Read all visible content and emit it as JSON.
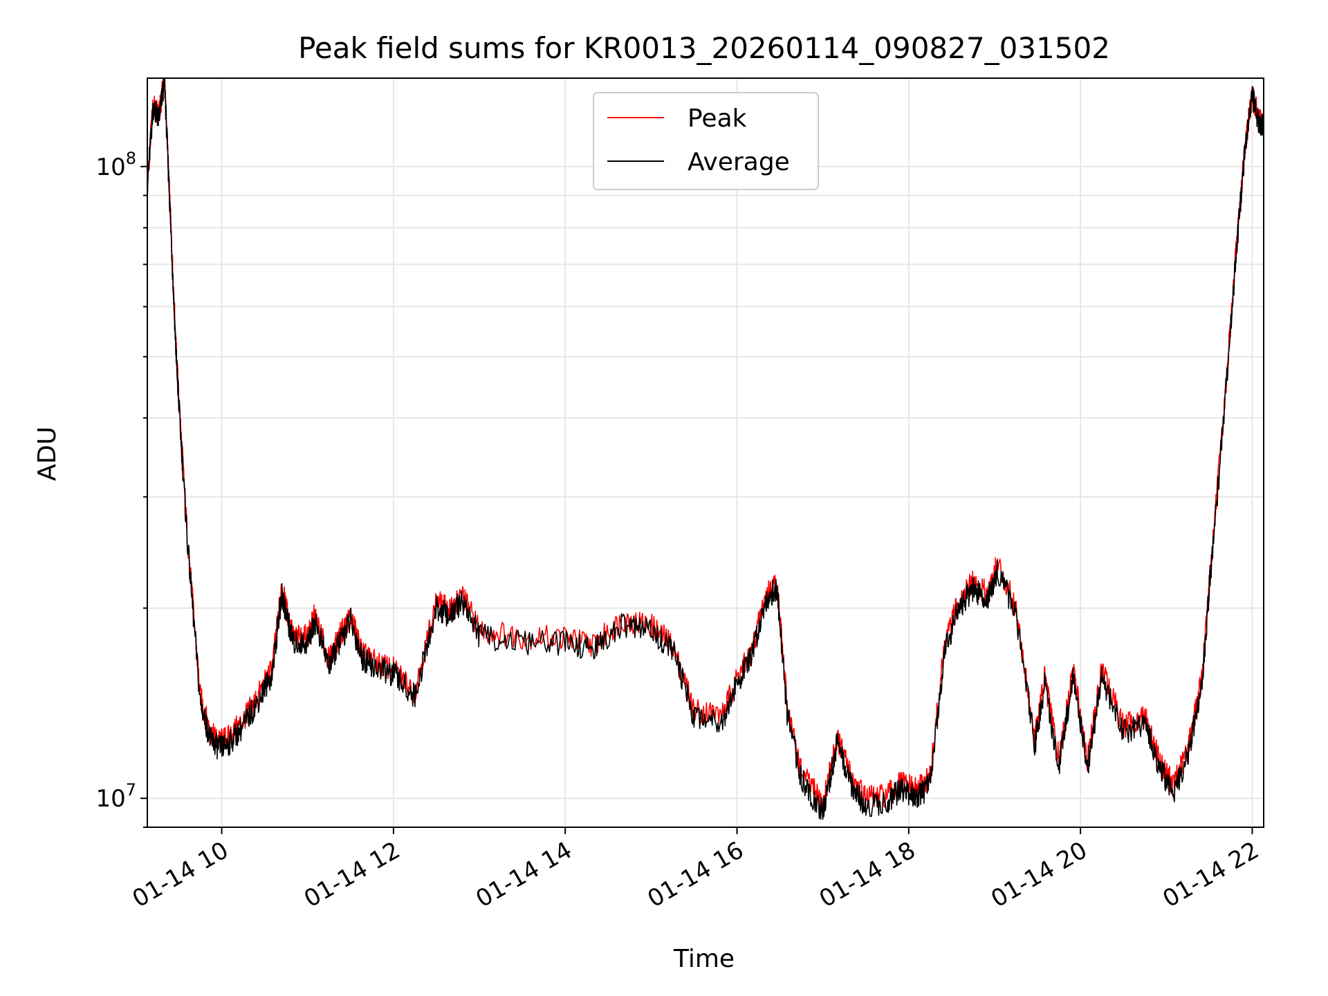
{
  "chart_data": {
    "type": "line",
    "title": "Peak field sums for KR0013_20260114_090827_031502",
    "xlabel": "Time",
    "ylabel": "ADU",
    "yscale": "log",
    "xlim": [
      "2026-01-14 09:08",
      "2026-01-14 22:08"
    ],
    "ylim": [
      9000000,
      138000000
    ],
    "x_ticks": [
      "01-14 10",
      "01-14 12",
      "01-14 14",
      "01-14 16",
      "01-14 18",
      "01-14 20",
      "01-14 22"
    ],
    "y_ticks": [
      {
        "base": "10",
        "exp": "7"
      },
      {
        "base": "10",
        "exp": "8"
      }
    ],
    "grid": true,
    "legend": {
      "placement": "top-center"
    },
    "series": [
      {
        "name": "Peak",
        "color": "#ff0000",
        "x": [
          "2026-01-14 09:08",
          "2026-01-14 09:12",
          "2026-01-14 09:16",
          "2026-01-14 09:20",
          "2026-01-14 09:24",
          "2026-01-14 09:28",
          "2026-01-14 09:30",
          "2026-01-14 09:36",
          "2026-01-14 09:45",
          "2026-01-14 09:52",
          "2026-01-14 09:58",
          "2026-01-14 10:05",
          "2026-01-14 10:15",
          "2026-01-14 10:25",
          "2026-01-14 10:35",
          "2026-01-14 10:42",
          "2026-01-14 10:45",
          "2026-01-14 10:50",
          "2026-01-14 11:00",
          "2026-01-14 11:05",
          "2026-01-14 11:15",
          "2026-01-14 11:22",
          "2026-01-14 11:30",
          "2026-01-14 11:38",
          "2026-01-14 11:45",
          "2026-01-14 12:00",
          "2026-01-14 12:15",
          "2026-01-14 12:30",
          "2026-01-14 12:40",
          "2026-01-14 12:48",
          "2026-01-14 13:00",
          "2026-01-14 13:30",
          "2026-01-14 14:00",
          "2026-01-14 14:20",
          "2026-01-14 14:40",
          "2026-01-14 15:00",
          "2026-01-14 15:15",
          "2026-01-14 15:30",
          "2026-01-14 15:50",
          "2026-01-14 16:00",
          "2026-01-14 16:10",
          "2026-01-14 16:20",
          "2026-01-14 16:28",
          "2026-01-14 16:35",
          "2026-01-14 16:45",
          "2026-01-14 17:00",
          "2026-01-14 17:10",
          "2026-01-14 17:20",
          "2026-01-14 17:30",
          "2026-01-14 17:45",
          "2026-01-14 17:55",
          "2026-01-14 18:05",
          "2026-01-14 18:15",
          "2026-01-14 18:25",
          "2026-01-14 18:35",
          "2026-01-14 18:45",
          "2026-01-14 18:55",
          "2026-01-14 19:02",
          "2026-01-14 19:15",
          "2026-01-14 19:28",
          "2026-01-14 19:35",
          "2026-01-14 19:45",
          "2026-01-14 19:55",
          "2026-01-14 20:05",
          "2026-01-14 20:15",
          "2026-01-14 20:30",
          "2026-01-14 20:45",
          "2026-01-14 20:55",
          "2026-01-14 21:05",
          "2026-01-14 21:15",
          "2026-01-14 21:25",
          "2026-01-14 21:30",
          "2026-01-14 21:40",
          "2026-01-14 21:48",
          "2026-01-14 21:55",
          "2026-01-14 22:00",
          "2026-01-14 22:05",
          "2026-01-14 22:08"
        ],
        "y": [
          94000000,
          125000000,
          120000000,
          138000000,
          85000000,
          52000000,
          43000000,
          26000000,
          14500000,
          12700000,
          12300000,
          12500000,
          13300000,
          14500000,
          16000000,
          21500000,
          20000000,
          18000000,
          18000000,
          19500000,
          16500000,
          18000000,
          19500000,
          17000000,
          16500000,
          16000000,
          14800000,
          20500000,
          19800000,
          21000000,
          18500000,
          18000000,
          18000000,
          17500000,
          19200000,
          18800000,
          17500000,
          13800000,
          13600000,
          15500000,
          17000000,
          21000000,
          22000000,
          14000000,
          11000000,
          9800000,
          12500000,
          10800000,
          10000000,
          10100000,
          10600000,
          10300000,
          10800000,
          17500000,
          20500000,
          22000000,
          21000000,
          23500000,
          20000000,
          12500000,
          15500000,
          11500000,
          16000000,
          11500000,
          16000000,
          13000000,
          13500000,
          11500000,
          10500000,
          12000000,
          15500000,
          22000000,
          40000000,
          70000000,
          108000000,
          130000000,
          118000000,
          116000000
        ]
      },
      {
        "name": "Average",
        "color": "#000000",
        "x": [
          "2026-01-14 09:08",
          "2026-01-14 09:12",
          "2026-01-14 09:16",
          "2026-01-14 09:20",
          "2026-01-14 09:24",
          "2026-01-14 09:28",
          "2026-01-14 09:30",
          "2026-01-14 09:36",
          "2026-01-14 09:45",
          "2026-01-14 09:52",
          "2026-01-14 09:58",
          "2026-01-14 10:05",
          "2026-01-14 10:15",
          "2026-01-14 10:25",
          "2026-01-14 10:35",
          "2026-01-14 10:42",
          "2026-01-14 10:45",
          "2026-01-14 10:50",
          "2026-01-14 11:00",
          "2026-01-14 11:05",
          "2026-01-14 11:15",
          "2026-01-14 11:22",
          "2026-01-14 11:30",
          "2026-01-14 11:38",
          "2026-01-14 11:45",
          "2026-01-14 12:00",
          "2026-01-14 12:15",
          "2026-01-14 12:30",
          "2026-01-14 12:40",
          "2026-01-14 12:48",
          "2026-01-14 13:00",
          "2026-01-14 13:30",
          "2026-01-14 14:00",
          "2026-01-14 14:20",
          "2026-01-14 14:40",
          "2026-01-14 15:00",
          "2026-01-14 15:15",
          "2026-01-14 15:30",
          "2026-01-14 15:50",
          "2026-01-14 16:00",
          "2026-01-14 16:10",
          "2026-01-14 16:20",
          "2026-01-14 16:28",
          "2026-01-14 16:35",
          "2026-01-14 16:45",
          "2026-01-14 17:00",
          "2026-01-14 17:10",
          "2026-01-14 17:20",
          "2026-01-14 17:30",
          "2026-01-14 17:45",
          "2026-01-14 17:55",
          "2026-01-14 18:05",
          "2026-01-14 18:15",
          "2026-01-14 18:25",
          "2026-01-14 18:35",
          "2026-01-14 18:45",
          "2026-01-14 18:55",
          "2026-01-14 19:02",
          "2026-01-14 19:15",
          "2026-01-14 19:28",
          "2026-01-14 19:35",
          "2026-01-14 19:45",
          "2026-01-14 19:55",
          "2026-01-14 20:05",
          "2026-01-14 20:15",
          "2026-01-14 20:30",
          "2026-01-14 20:45",
          "2026-01-14 20:55",
          "2026-01-14 21:05",
          "2026-01-14 21:15",
          "2026-01-14 21:25",
          "2026-01-14 21:30",
          "2026-01-14 21:40",
          "2026-01-14 21:48",
          "2026-01-14 21:55",
          "2026-01-14 22:00",
          "2026-01-14 22:05",
          "2026-01-14 22:08"
        ],
        "y": [
          93000000,
          124000000,
          119000000,
          137000000,
          84000000,
          51000000,
          42000000,
          25500000,
          14200000,
          12400000,
          12000000,
          12200000,
          13000000,
          14200000,
          15700000,
          21000000,
          19600000,
          17600000,
          17600000,
          19100000,
          16200000,
          17600000,
          19100000,
          16700000,
          16200000,
          15700000,
          14500000,
          20000000,
          19400000,
          20600000,
          18100000,
          17600000,
          17600000,
          17200000,
          18800000,
          18400000,
          17200000,
          13500000,
          13300000,
          15200000,
          16700000,
          20600000,
          21500000,
          13600000,
          10700000,
          9500000,
          12200000,
          10500000,
          9700000,
          9900000,
          10300000,
          10000000,
          10500000,
          17100000,
          20000000,
          21500000,
          20600000,
          23000000,
          19600000,
          12100000,
          15100000,
          11200000,
          15600000,
          11200000,
          15600000,
          12700000,
          13200000,
          11200000,
          10200000,
          11700000,
          15100000,
          21500000,
          39500000,
          69000000,
          107000000,
          129000000,
          117000000,
          115000000
        ]
      }
    ]
  }
}
